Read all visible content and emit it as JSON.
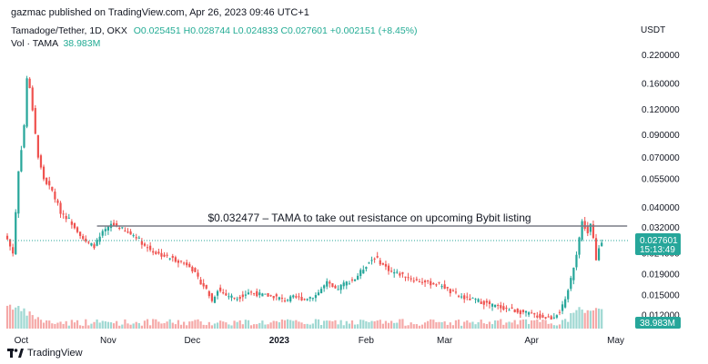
{
  "header": {
    "publisher": "gazmac published on TradingView.com, Apr 26, 2023 09:46 UTC+1",
    "symbol": "Tamadoge/Tether, 1D, OKX",
    "ohlc": "O0.025451 H0.028744 L0.024833 C0.027601 +0.002151 (+8.45%)",
    "vol_label": "Vol · TAMA",
    "vol_value": "38.983M"
  },
  "axis": {
    "currency": "USDT",
    "current_price": "0.027601",
    "countdown": "15:13:49",
    "volume_badge": "38.983M"
  },
  "footer": {
    "brand": "TradingView"
  },
  "colors": {
    "up": "#26a69a",
    "down": "#ef5350",
    "up_vol": "#9fd8d2",
    "down_vol": "#f5a9a8",
    "badge": "#26a69a"
  },
  "chart_data": {
    "type": "candlestick",
    "y_scale": "log",
    "y_ticks": [
      "0.220000",
      "0.160000",
      "0.120000",
      "0.090000",
      "0.070000",
      "0.055000",
      "0.040000",
      "0.032000",
      "0.024000",
      "0.019000",
      "0.015000",
      "0.012000"
    ],
    "y_tick_values": [
      0.22,
      0.16,
      0.12,
      0.09,
      0.07,
      0.055,
      0.04,
      0.032,
      0.024,
      0.019,
      0.015,
      0.012
    ],
    "x_ticks": [
      "Oct",
      "Nov",
      "Dec",
      "2023",
      "Feb",
      "Mar",
      "Apr",
      "May"
    ],
    "x_tick_dates": [
      "2022-10-01",
      "2022-11-01",
      "2022-12-01",
      "2023-01-01",
      "2023-02-01",
      "2023-03-01",
      "2023-04-01",
      "2023-05-01"
    ],
    "x_range": [
      "2022-09-26",
      "2023-05-06"
    ],
    "annotation": {
      "text": "$0.032477 – TAMA to take out resistance on upcoming Bybit listing",
      "value": 0.032477,
      "start": "2022-10-28",
      "end": "2023-04-26"
    },
    "price_path": [
      [
        "2022-09-26",
        0.028
      ],
      [
        "2022-09-28",
        0.024
      ],
      [
        "2022-09-30",
        0.06
      ],
      [
        "2022-10-02",
        0.1
      ],
      [
        "2022-10-03",
        0.17
      ],
      [
        "2022-10-04",
        0.15
      ],
      [
        "2022-10-05",
        0.12
      ],
      [
        "2022-10-07",
        0.07
      ],
      [
        "2022-10-09",
        0.055
      ],
      [
        "2022-10-12",
        0.048
      ],
      [
        "2022-10-15",
        0.038
      ],
      [
        "2022-10-18",
        0.035
      ],
      [
        "2022-10-21",
        0.031
      ],
      [
        "2022-10-24",
        0.027
      ],
      [
        "2022-10-27",
        0.026
      ],
      [
        "2022-10-30",
        0.03
      ],
      [
        "2022-11-02",
        0.033
      ],
      [
        "2022-11-05",
        0.032
      ],
      [
        "2022-11-08",
        0.03
      ],
      [
        "2022-11-11",
        0.029
      ],
      [
        "2022-11-14",
        0.026
      ],
      [
        "2022-11-18",
        0.024
      ],
      [
        "2022-11-22",
        0.023
      ],
      [
        "2022-11-26",
        0.022
      ],
      [
        "2022-11-30",
        0.021
      ],
      [
        "2022-12-03",
        0.018
      ],
      [
        "2022-12-06",
        0.016
      ],
      [
        "2022-12-08",
        0.014
      ],
      [
        "2022-12-10",
        0.016
      ],
      [
        "2022-12-13",
        0.015
      ],
      [
        "2022-12-17",
        0.0145
      ],
      [
        "2022-12-21",
        0.0155
      ],
      [
        "2022-12-26",
        0.015
      ],
      [
        "2022-12-30",
        0.0148
      ],
      [
        "2023-01-03",
        0.0142
      ],
      [
        "2023-01-06",
        0.0146
      ],
      [
        "2023-01-10",
        0.0144
      ],
      [
        "2023-01-14",
        0.015
      ],
      [
        "2023-01-18",
        0.0172
      ],
      [
        "2023-01-21",
        0.0158
      ],
      [
        "2023-01-24",
        0.017
      ],
      [
        "2023-01-28",
        0.018
      ],
      [
        "2023-02-01",
        0.021
      ],
      [
        "2023-02-04",
        0.023
      ],
      [
        "2023-02-07",
        0.021
      ],
      [
        "2023-02-10",
        0.0195
      ],
      [
        "2023-02-14",
        0.0188
      ],
      [
        "2023-02-18",
        0.0178
      ],
      [
        "2023-02-23",
        0.0172
      ],
      [
        "2023-02-28",
        0.0168
      ],
      [
        "2023-03-03",
        0.0155
      ],
      [
        "2023-03-08",
        0.0145
      ],
      [
        "2023-03-12",
        0.0142
      ],
      [
        "2023-03-17",
        0.0135
      ],
      [
        "2023-03-22",
        0.013
      ],
      [
        "2023-03-27",
        0.0125
      ],
      [
        "2023-03-31",
        0.0122
      ],
      [
        "2023-04-04",
        0.0118
      ],
      [
        "2023-04-08",
        0.0116
      ],
      [
        "2023-04-11",
        0.0125
      ],
      [
        "2023-04-13",
        0.014
      ],
      [
        "2023-04-15",
        0.018
      ],
      [
        "2023-04-17",
        0.024
      ],
      [
        "2023-04-19",
        0.034
      ],
      [
        "2023-04-20",
        0.032
      ],
      [
        "2023-04-21",
        0.03
      ],
      [
        "2023-04-22",
        0.033
      ],
      [
        "2023-04-23",
        0.028
      ],
      [
        "2023-04-24",
        0.022
      ],
      [
        "2023-04-25",
        0.0255
      ],
      [
        "2023-04-26",
        0.0276
      ]
    ]
  }
}
